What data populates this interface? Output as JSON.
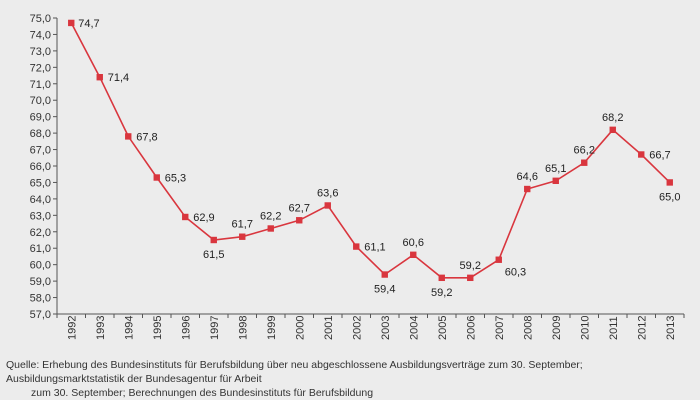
{
  "chart_data": {
    "type": "line",
    "title": "",
    "xlabel": "",
    "ylabel": "",
    "categories": [
      "1992",
      "1993",
      "1994",
      "1995",
      "1996",
      "1997",
      "1998",
      "1999",
      "2000",
      "2001",
      "2002",
      "2003",
      "2004",
      "2005",
      "2006",
      "2007",
      "2008",
      "2009",
      "2010",
      "2011",
      "2012",
      "2013"
    ],
    "series": [
      {
        "values": [
          74.7,
          71.4,
          67.8,
          65.3,
          62.9,
          61.5,
          61.7,
          62.2,
          62.7,
          63.6,
          61.1,
          59.4,
          60.6,
          59.2,
          59.2,
          60.3,
          64.6,
          65.1,
          66.2,
          68.2,
          66.7,
          65.0
        ],
        "labels": [
          "74,7",
          "71,4",
          "67,8",
          "65,3",
          "62,9",
          "61,5",
          "61,7",
          "62,2",
          "62,7",
          "63,6",
          "61,1",
          "59,4",
          "60,6",
          "59,2",
          "59,2",
          "60,3",
          "64,6",
          "65,1",
          "66,2",
          "68,2",
          "66,7",
          "65,0"
        ],
        "color": "#d9363e"
      }
    ],
    "ylim": [
      57,
      75
    ],
    "yticks": [
      "57,0",
      "58,0",
      "59,0",
      "60,0",
      "61,0",
      "62,0",
      "63,0",
      "64,0",
      "65,0",
      "66,0",
      "67,0",
      "68,0",
      "69,0",
      "70,0",
      "71,0",
      "72,0",
      "73,0",
      "74,0",
      "75,0"
    ],
    "grid": false,
    "legend": "none"
  },
  "source": {
    "line1": "Quelle: Erhebung des Bundesinstituts für Berufsbildung über neu abgeschlossene Ausbildungsverträge zum 30. September; Ausbildungsmarktstatistik der Bundesagentur für Arbeit",
    "line2": "zum 30. September; Berechnungen des Bundesinstituts für Berufsbildung"
  }
}
